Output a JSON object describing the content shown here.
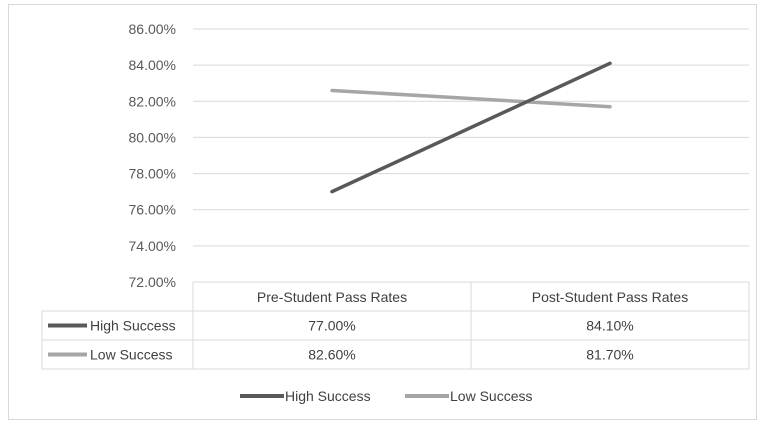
{
  "chart_data": {
    "type": "line",
    "title": "",
    "xlabel": "",
    "ylabel": "",
    "categories": [
      "Pre-Student Pass Rates",
      "Post-Student Pass Rates"
    ],
    "series": [
      {
        "name": "High Success",
        "values": [
          77.0,
          84.1
        ],
        "labels": [
          "77.00%",
          "84.10%"
        ],
        "color": "#595959"
      },
      {
        "name": "Low Success",
        "values": [
          82.6,
          81.7
        ],
        "labels": [
          "82.60%",
          "81.70%"
        ],
        "color": "#a6a6a6"
      }
    ],
    "ylim": [
      72,
      86
    ],
    "yticks": [
      {
        "value": 86,
        "label": "86.00%"
      },
      {
        "value": 84,
        "label": "84.00%"
      },
      {
        "value": 82,
        "label": "82.00%"
      },
      {
        "value": 80,
        "label": "80.00%"
      },
      {
        "value": 78,
        "label": "78.00%"
      },
      {
        "value": 76,
        "label": "76.00%"
      },
      {
        "value": 74,
        "label": "74.00%"
      },
      {
        "value": 72,
        "label": "72.00%"
      }
    ],
    "grid": true,
    "data_table": true,
    "legend": "bottom"
  }
}
